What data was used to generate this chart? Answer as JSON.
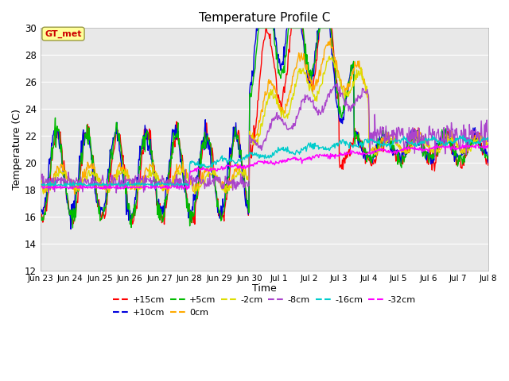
{
  "title": "Temperature Profile C",
  "xlabel": "Time",
  "ylabel": "Temperature (C)",
  "ylim": [
    12,
    30
  ],
  "yticks": [
    12,
    14,
    16,
    18,
    20,
    22,
    24,
    26,
    28,
    30
  ],
  "xtick_labels": [
    "Jun 23",
    "Jun 24",
    "Jun 25",
    "Jun 26",
    "Jun 27",
    "Jun 28",
    "Jun 29",
    "Jun 30",
    "Jul 1",
    "Jul 2",
    "Jul 3",
    "Jul 4",
    "Jul 5",
    "Jul 6",
    "Jul 7",
    "Jul 8"
  ],
  "annotation_text": "GT_met",
  "annotation_color": "#cc0000",
  "annotation_bg": "#ffff99",
  "annotation_edge": "#999944",
  "series_info": [
    {
      "label": "+15cm",
      "color": "#ff0000"
    },
    {
      "label": "+10cm",
      "color": "#0000dd"
    },
    {
      "label": "+5cm",
      "color": "#00bb00"
    },
    {
      "label": "0cm",
      "color": "#ffaa00"
    },
    {
      "label": "-2cm",
      "color": "#dddd00"
    },
    {
      "label": "-8cm",
      "color": "#aa44cc"
    },
    {
      "label": "-16cm",
      "color": "#00cccc"
    },
    {
      "label": "-32cm",
      "color": "#ff00ff"
    }
  ],
  "background_color": "#e8e8e8",
  "fig_bg_color": "#ffffff",
  "grid_color": "#ffffff",
  "linewidth": 1.0
}
